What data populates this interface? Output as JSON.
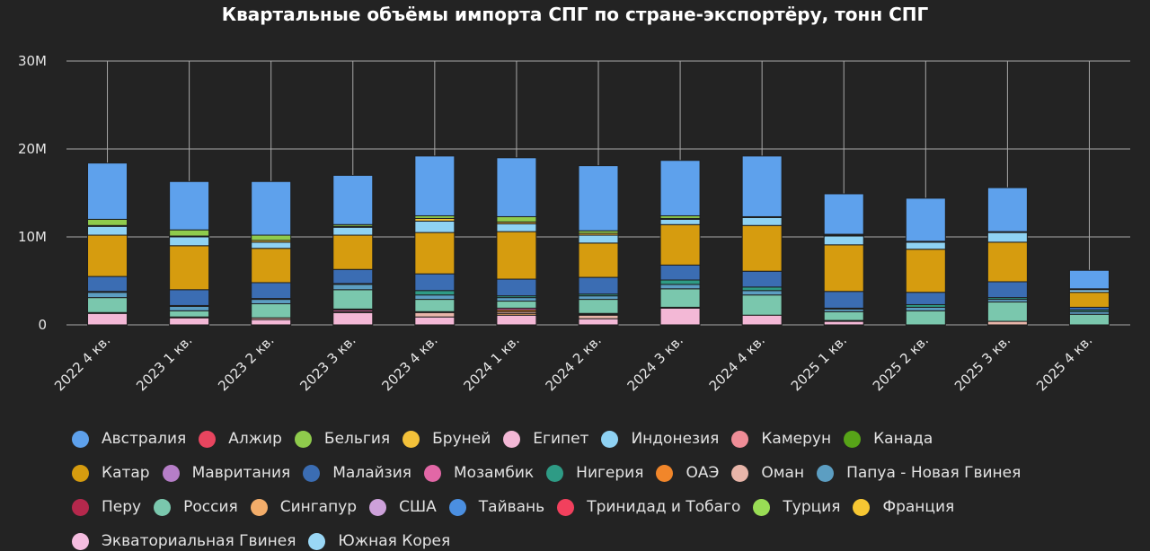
{
  "colors": {
    "background": "#232323",
    "grid": "#a8a8a8",
    "text": "#e6e6e6"
  },
  "chart_data": {
    "type": "bar",
    "stacked": true,
    "title": "Квартальные объёмы импорта СПГ по стране-экспортёру, тонн СПГ",
    "xlabel": "",
    "ylabel": "",
    "ylim": [
      0,
      30000000
    ],
    "y_ticks": [
      {
        "value": 0,
        "label": "0"
      },
      {
        "value": 10000000,
        "label": "10M"
      },
      {
        "value": 20000000,
        "label": "20M"
      },
      {
        "value": 30000000,
        "label": "30M"
      }
    ],
    "grid": true,
    "legend_position": "bottom",
    "categories": [
      "2022 4 кв.",
      "2023 1 кв.",
      "2023 2 кв.",
      "2023 3 кв.",
      "2023 4 кв.",
      "2024 1 кв.",
      "2024 2 кв.",
      "2024 3 кв.",
      "2024 4 кв.",
      "2025 1 кв.",
      "2025 2 кв.",
      "2025 3 кв.",
      "2025 4 кв."
    ],
    "series": [
      {
        "name": "Австралия",
        "color": "#5ea1ec",
        "values": [
          6400000,
          5500000,
          6100000,
          5600000,
          6800000,
          6700000,
          7400000,
          6300000,
          6900000,
          4600000,
          4900000,
          5000000,
          2100000
        ]
      },
      {
        "name": "Алжир",
        "color": "#e8455f",
        "values": [
          0,
          0,
          0,
          0,
          0,
          0,
          0,
          0,
          0,
          0,
          0,
          0,
          0
        ]
      },
      {
        "name": "Бельгия",
        "color": "#8fcb4c",
        "values": [
          700000,
          700000,
          600000,
          200000,
          300000,
          600000,
          300000,
          300000,
          0,
          100000,
          0,
          0,
          0
        ]
      },
      {
        "name": "Бруней",
        "color": "#f3c13a",
        "values": [
          100000,
          100000,
          200000,
          100000,
          300000,
          200000,
          200000,
          100000,
          100000,
          100000,
          100000,
          100000,
          100000
        ]
      },
      {
        "name": "Египет",
        "color": "#f3b8d6",
        "values": [
          0,
          0,
          0,
          0,
          0,
          0,
          0,
          0,
          0,
          0,
          0,
          0,
          0
        ]
      },
      {
        "name": "Индонезия",
        "color": "#8fd2f3",
        "values": [
          1000000,
          1000000,
          700000,
          900000,
          1300000,
          900000,
          900000,
          600000,
          900000,
          1000000,
          800000,
          1100000,
          300000
        ]
      },
      {
        "name": "Камерун",
        "color": "#ef8d97",
        "values": [
          0,
          0,
          0,
          0,
          0,
          0,
          0,
          0,
          0,
          0,
          0,
          0,
          0
        ]
      },
      {
        "name": "Канада",
        "color": "#57a318",
        "values": [
          0,
          0,
          0,
          0,
          0,
          0,
          0,
          0,
          0,
          0,
          0,
          0,
          0
        ]
      },
      {
        "name": "Катар",
        "color": "#d69c0f",
        "values": [
          4700000,
          5000000,
          3900000,
          3900000,
          4700000,
          5400000,
          3900000,
          4600000,
          5200000,
          5300000,
          4900000,
          4500000,
          1700000
        ]
      },
      {
        "name": "Мавритания",
        "color": "#b67ec8",
        "values": [
          0,
          0,
          0,
          0,
          0,
          0,
          0,
          0,
          0,
          0,
          0,
          0,
          0
        ]
      },
      {
        "name": "Малайзия",
        "color": "#3b6db3",
        "values": [
          1700000,
          1800000,
          1800000,
          1600000,
          1900000,
          1900000,
          1900000,
          1700000,
          1800000,
          1900000,
          1400000,
          1800000,
          300000
        ]
      },
      {
        "name": "Мозамбик",
        "color": "#e267a6",
        "values": [
          100000,
          0,
          0,
          200000,
          100000,
          200000,
          100000,
          100000,
          0,
          0,
          0,
          0,
          0
        ]
      },
      {
        "name": "Нигерия",
        "color": "#2e9b85",
        "values": [
          100000,
          100000,
          100000,
          100000,
          500000,
          200000,
          200000,
          500000,
          400000,
          100000,
          300000,
          200000,
          200000
        ]
      },
      {
        "name": "ОАЭ",
        "color": "#f1862a",
        "values": [
          0,
          0,
          0,
          0,
          0,
          200000,
          100000,
          0,
          0,
          0,
          0,
          0,
          0
        ]
      },
      {
        "name": "Оман",
        "color": "#e8b5a9",
        "values": [
          0,
          0,
          200000,
          0,
          500000,
          200000,
          400000,
          0,
          0,
          0,
          0,
          400000,
          0
        ]
      },
      {
        "name": "Папуа - Новая Гвинея",
        "color": "#5c9ec2",
        "values": [
          600000,
          500000,
          500000,
          600000,
          500000,
          400000,
          400000,
          500000,
          500000,
          300000,
          400000,
          300000,
          300000
        ]
      },
      {
        "name": "Перу",
        "color": "#b5284c",
        "values": [
          0,
          0,
          0,
          100000,
          0,
          0,
          0,
          0,
          0,
          0,
          0,
          0,
          0
        ]
      },
      {
        "name": "Россия",
        "color": "#7ac7ad",
        "values": [
          1700000,
          700000,
          1600000,
          2200000,
          1400000,
          800000,
          1600000,
          2100000,
          2300000,
          1000000,
          1600000,
          2200000,
          1200000
        ]
      },
      {
        "name": "Сингапур",
        "color": "#f3ad6a",
        "values": [
          0,
          100000,
          0,
          100000,
          0,
          200000,
          0,
          0,
          0,
          100000,
          0,
          0,
          0
        ]
      },
      {
        "name": "США",
        "color": "#cda1da",
        "values": [
          0,
          0,
          0,
          0,
          0,
          0,
          0,
          0,
          0,
          0,
          0,
          0,
          0
        ]
      },
      {
        "name": "Тайвань",
        "color": "#4b8fe0",
        "values": [
          0,
          0,
          0,
          0,
          0,
          0,
          0,
          0,
          0,
          0,
          0,
          0,
          0
        ]
      },
      {
        "name": "Тринидад и Тобаго",
        "color": "#f2405d",
        "values": [
          0,
          0,
          0,
          0,
          0,
          0,
          0,
          0,
          0,
          0,
          0,
          0,
          0
        ]
      },
      {
        "name": "Турция",
        "color": "#99dd55",
        "values": [
          0,
          0,
          0,
          0,
          0,
          0,
          0,
          0,
          0,
          0,
          0,
          0,
          0
        ]
      },
      {
        "name": "Франция",
        "color": "#f7c733",
        "values": [
          0,
          0,
          0,
          0,
          0,
          0,
          0,
          0,
          0,
          0,
          0,
          0,
          0
        ]
      },
      {
        "name": "Экваториальная Гвинея",
        "color": "#f5bde0",
        "values": [
          0,
          0,
          0,
          0,
          0,
          0,
          0,
          0,
          0,
          0,
          0,
          0,
          0
        ]
      },
      {
        "name": "Южная Корея",
        "color": "#9ad7f5",
        "values": [
          0,
          0,
          0,
          0,
          0,
          0,
          0,
          0,
          0,
          0,
          0,
          0,
          0
        ]
      }
    ],
    "base_segments": {
      "name": "Египет",
      "values": [
        1300000,
        800000,
        600000,
        1400000,
        900000,
        1100000,
        700000,
        1900000,
        1100000,
        400000,
        0,
        0,
        0
      ]
    }
  }
}
